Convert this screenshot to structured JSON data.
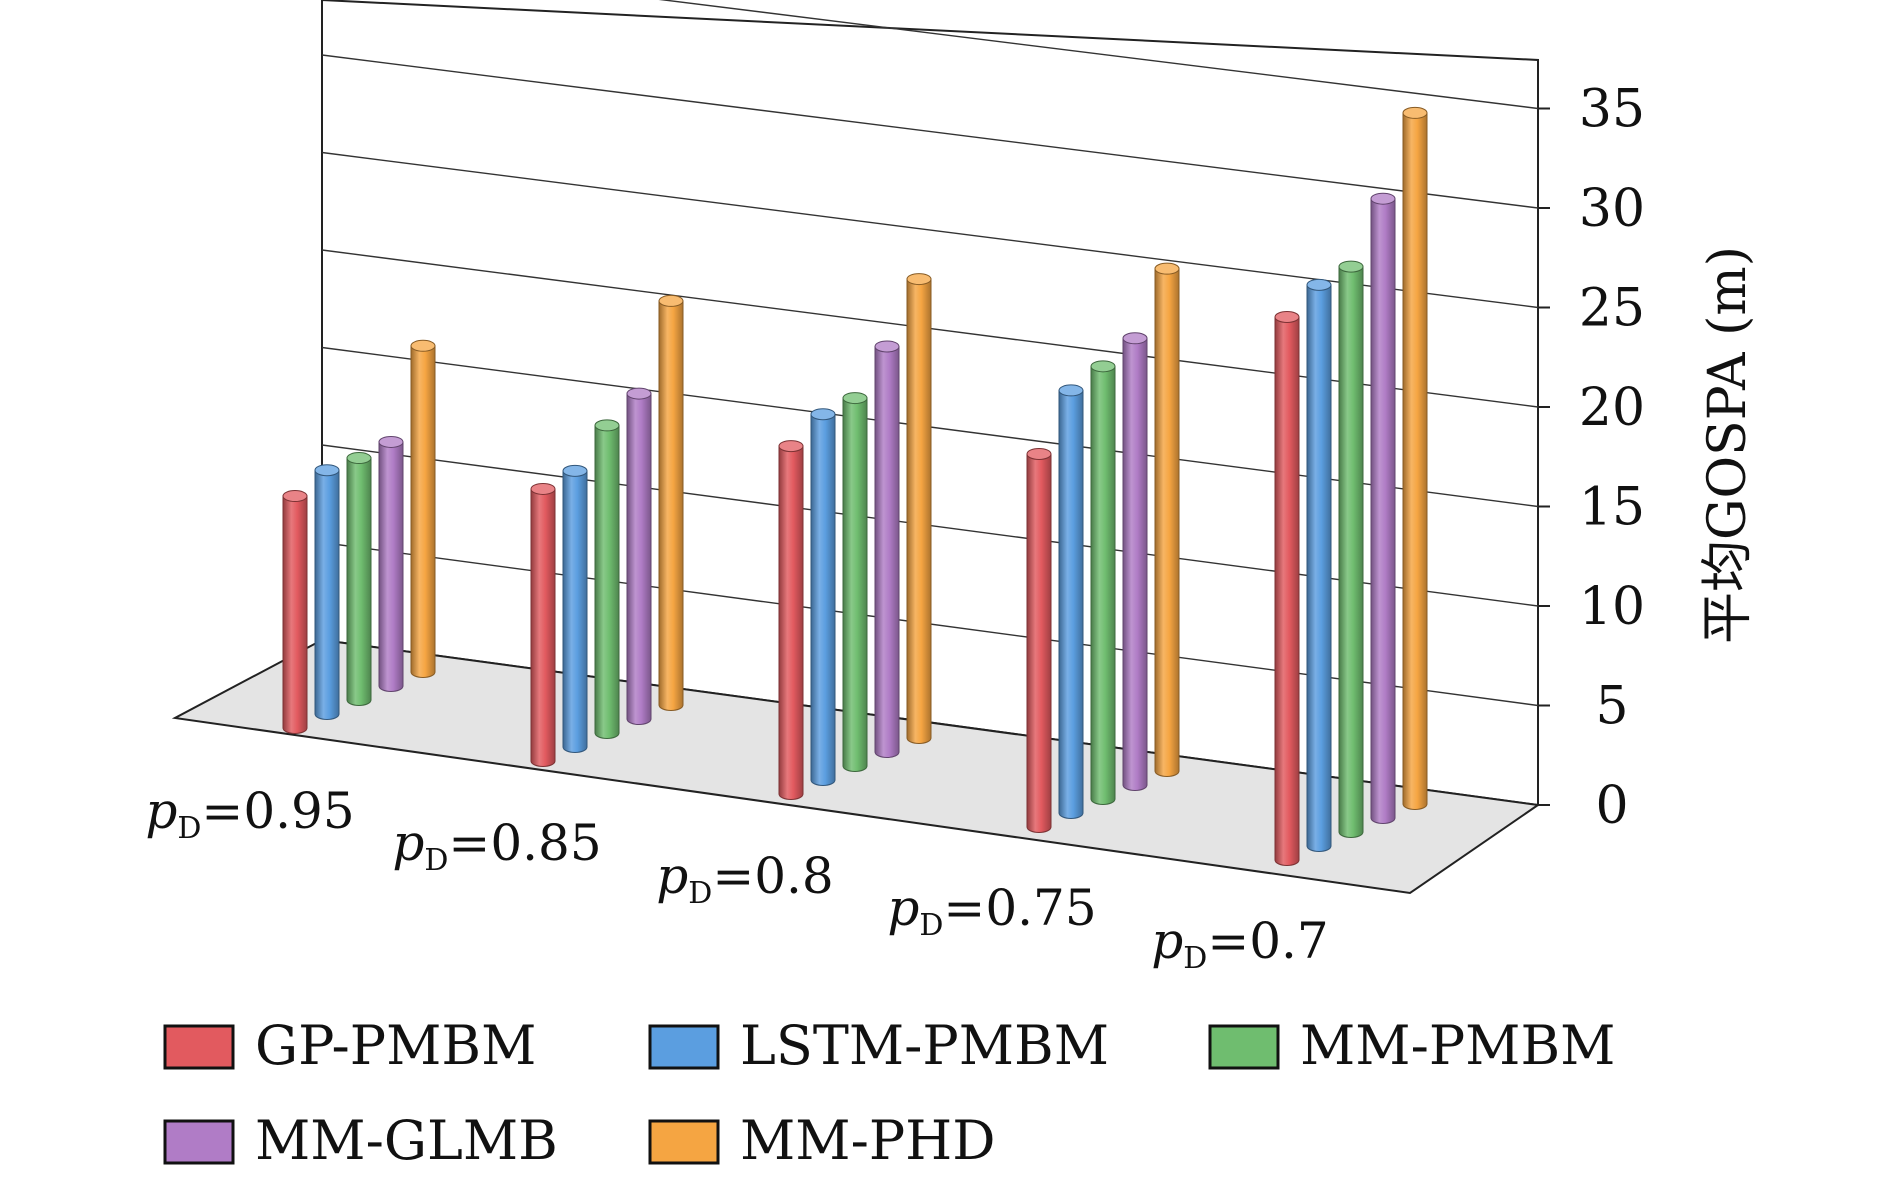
{
  "chart_data": {
    "type": "bar",
    "subtype": "3d-cylinder",
    "title": "",
    "categories": [
      "pD=0.95",
      "pD=0.85",
      "pD=0.8",
      "pD=0.75",
      "pD=0.7"
    ],
    "category_labels": [
      {
        "var": "p",
        "sub": "D",
        "value": "=0.95"
      },
      {
        "var": "p",
        "sub": "D",
        "value": "=0.85"
      },
      {
        "var": "p",
        "sub": "D",
        "value": "=0.8"
      },
      {
        "var": "p",
        "sub": "D",
        "value": "=0.75"
      },
      {
        "var": "p",
        "sub": "D",
        "value": "=0.7"
      }
    ],
    "series": [
      {
        "name": "GP-PMBM",
        "color": "#e25a5f",
        "values": [
          11.9,
          13.9,
          17.7,
          18.9,
          27.4
        ]
      },
      {
        "name": "LSTM-PMBM",
        "color": "#5b9ee0",
        "values": [
          12.5,
          14.1,
          18.6,
          21.4,
          28.3
        ]
      },
      {
        "name": "MM-PMBM",
        "color": "#6fbd6f",
        "values": [
          12.4,
          15.7,
          18.7,
          21.9,
          28.5
        ]
      },
      {
        "name": "MM-GLMB",
        "color": "#b07cc6",
        "values": [
          12.5,
          16.6,
          20.6,
          22.6,
          31.2
        ]
      },
      {
        "name": "MM-PHD",
        "color": "#f5a542",
        "values": [
          16.7,
          20.6,
          23.3,
          25.4,
          34.8
        ]
      }
    ],
    "ylabel": "平均GOSPA (m)",
    "ylim": [
      0,
      35
    ],
    "yticks": [
      "0",
      "5",
      "10",
      "15",
      "20",
      "25",
      "30",
      "35"
    ],
    "grid": true,
    "legend": "bottom"
  }
}
